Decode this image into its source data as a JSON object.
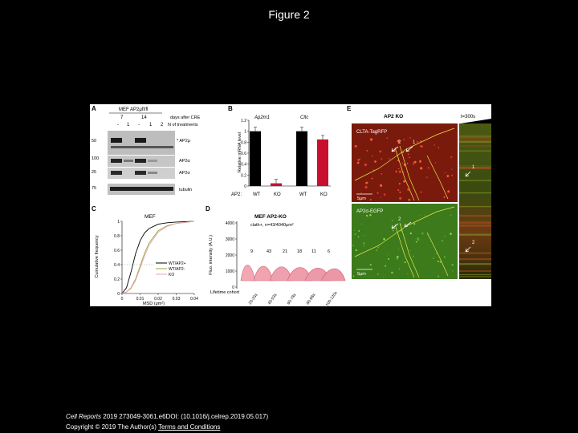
{
  "slide": {
    "title": "Figure 2",
    "citation_journal": "Cell Reports",
    "citation_rest": " 2019 273049-3061.e6DOI: (10.1016/j.celrep.2019.05.017)",
    "copyright": "Copyright © 2019 The Author(s)",
    "terms_link": "Terms and Conditions"
  },
  "panelA": {
    "letter": "A",
    "header": "MEF AP2μfl/fl",
    "days_label": "days after CRE",
    "days": [
      "7",
      "14"
    ],
    "treat_label": "N of treatments",
    "lanes": [
      "-",
      "1",
      "-",
      "1",
      "2"
    ],
    "markers": [
      "50",
      "100",
      "25",
      "75"
    ],
    "bands": [
      "* AP2μ",
      "AP2α",
      "AP2σ",
      "tubulin"
    ]
  },
  "panelB": {
    "letter": "B",
    "gene1": "Ap2m1",
    "gene2": "Cltc",
    "ylabel": "Relative mRNA level",
    "yticks": [
      "1.2",
      "1",
      "0.8",
      "0.6",
      "0.4",
      "0.2",
      "0"
    ],
    "group_label": "AP2:",
    "wt": "WT",
    "ko": "KO"
  },
  "panelC": {
    "letter": "C",
    "header": "MEF",
    "ylabel": "Cumulative frequency",
    "xlabel": "MSD (μm²)",
    "yticks": [
      "1",
      "0.8",
      "0.6",
      "0.4",
      "0.2",
      "0"
    ],
    "xticks": [
      "0",
      "0.01",
      "0.02",
      "0.03",
      "0.04"
    ],
    "legend": [
      "WT/AP2+",
      "WT/AP2-",
      "KO"
    ]
  },
  "panelD": {
    "letter": "D",
    "header": "MEF AP2-KO",
    "subheader": "clath+, n=43/4040μm²",
    "ylabel": "Fluo. intensity (A.U.)",
    "yticks": [
      "4000",
      "3000",
      "2000",
      "1000",
      "0"
    ],
    "counts": [
      "9",
      "43",
      "21",
      "18",
      "11",
      "6"
    ],
    "cohort_label": "Lifetime cohort",
    "cohorts": [
      "20-33s",
      "40-53s",
      "60-78s",
      "80-98s",
      "100-120s"
    ]
  },
  "panelE": {
    "letter": "E",
    "header": "AP2 KO",
    "time_label": "t=300s",
    "ch1": "CLTA-TagRFP",
    "ch2": "AP2σ-EGFP",
    "scalebar": "5μm",
    "arrow1": "1",
    "arrow2": "2"
  },
  "chart_data": [
    {
      "type": "bar",
      "panel": "B",
      "title": "",
      "ylabel": "Relative mRNA level",
      "ylim": [
        0,
        1.2
      ],
      "categories": [
        "Ap2m1 WT",
        "Ap2m1 KO",
        "Cltc WT",
        "Cltc KO"
      ],
      "values": [
        1.0,
        0.05,
        1.0,
        0.85
      ],
      "colors": [
        "#000000",
        "#c8102e",
        "#000000",
        "#c8102e"
      ]
    },
    {
      "type": "line",
      "panel": "C",
      "title": "MEF",
      "xlabel": "MSD (μm²)",
      "ylabel": "Cumulative frequency",
      "xlim": [
        0,
        0.04
      ],
      "ylim": [
        0,
        1
      ],
      "x": [
        0,
        0.0025,
        0.005,
        0.0075,
        0.01,
        0.0125,
        0.015,
        0.02,
        0.025,
        0.03,
        0.04
      ],
      "series": [
        {
          "name": "WT/AP2+",
          "color": "#000000",
          "values": [
            0,
            0.08,
            0.3,
            0.55,
            0.73,
            0.84,
            0.9,
            0.96,
            0.98,
            0.99,
            1.0
          ]
        },
        {
          "name": "WT/AP2-",
          "color": "#9aa63a",
          "values": [
            0,
            0.02,
            0.08,
            0.2,
            0.38,
            0.56,
            0.7,
            0.87,
            0.94,
            0.97,
            1.0
          ]
        },
        {
          "name": "KO",
          "color": "#e8a6b0",
          "values": [
            0,
            0.02,
            0.07,
            0.18,
            0.35,
            0.52,
            0.67,
            0.85,
            0.93,
            0.97,
            1.0
          ]
        }
      ]
    }
  ]
}
